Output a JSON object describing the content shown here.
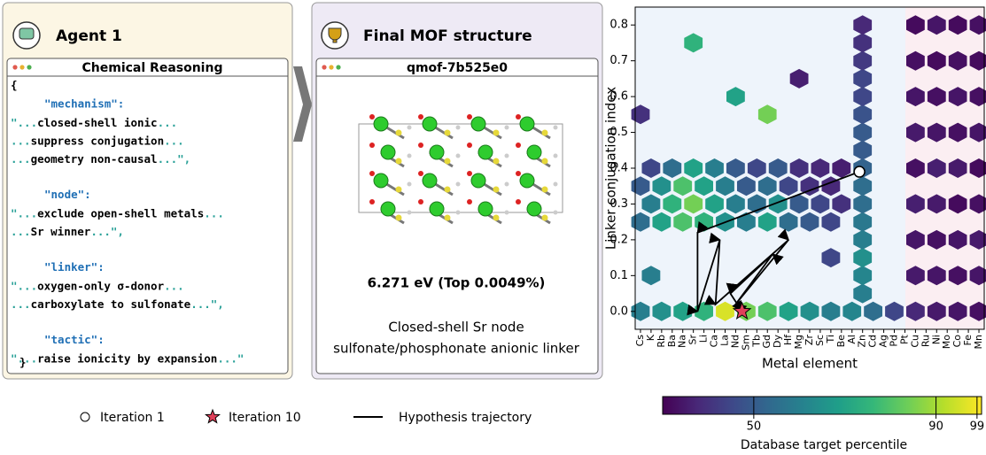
{
  "agent": {
    "title": "Agent 1",
    "window_title": "Chemical Reasoning",
    "open": "{",
    "close": "}",
    "sections": [
      {
        "key": "\"mechanism\":",
        "lines": [
          "\"...closed-shell ionic...",
          "...suppress conjugation...",
          "...geometry non-causal...\","
        ]
      },
      {
        "key": "\"node\":",
        "lines": [
          "\"...exclude open-shell metals...",
          "...Sr winner...\","
        ]
      },
      {
        "key": "\"linker\":",
        "lines": [
          "\"...oxygen-only σ-donor...",
          "...carboxylate to sulfonate...\","
        ]
      },
      {
        "key": "\"tactic\":",
        "lines": [
          "\"...raise ionicity by expansion...\""
        ]
      }
    ]
  },
  "structure": {
    "title": "Final MOF structure",
    "window_title": "qmof-7b525e0",
    "result": "6.271 eV (Top 0.0049%)",
    "description": [
      "Closed-shell Sr node",
      "sulfonate/phosphonate anionic linker"
    ]
  },
  "chart_data": {
    "type": "hexbin",
    "xlabel": "Metal element",
    "ylabel": "Linker conjugation index",
    "categories": [
      "Cs",
      "K",
      "Rb",
      "Ba",
      "Na",
      "Sr",
      "Li",
      "Ca",
      "La",
      "Nd",
      "Sm",
      "Tb",
      "Gd",
      "Dy",
      "Hf",
      "Mg",
      "Zr",
      "Sc",
      "Ti",
      "Be",
      "Al",
      "Zn",
      "Cd",
      "Ag",
      "Pd",
      "Pt",
      "Cu",
      "Ru",
      "Ni",
      "Mo",
      "Co",
      "Fe",
      "Mn"
    ],
    "ylim": [
      -0.05,
      0.85
    ],
    "yticks": [
      0.0,
      0.1,
      0.2,
      0.3,
      0.4,
      0.5,
      0.6,
      0.7,
      0.8
    ],
    "colorbar": {
      "label": "Database target percentile",
      "clim": [
        30,
        100
      ],
      "ticks": [
        50,
        90,
        99
      ]
    },
    "hexbins": {
      "x": [
        0,
        2,
        4,
        6,
        8,
        10,
        12,
        14,
        16,
        18,
        20,
        22,
        24,
        26,
        28,
        30,
        32,
        0,
        2,
        4,
        6,
        8,
        10,
        12,
        14,
        16,
        18,
        1,
        3,
        5,
        7,
        9,
        11,
        13,
        15,
        17,
        19,
        0,
        2,
        4,
        6,
        8,
        10,
        12,
        14,
        16,
        18,
        1,
        3,
        5,
        7,
        9,
        11,
        13,
        15,
        17,
        19,
        21,
        21,
        21,
        21,
        21,
        21,
        21,
        21,
        21,
        21,
        21,
        21,
        21,
        21,
        21,
        21,
        26,
        26,
        26,
        26,
        26,
        26,
        26,
        26,
        28,
        28,
        28,
        28,
        28,
        28,
        28,
        28,
        30,
        30,
        30,
        30,
        30,
        30,
        30,
        30,
        32,
        32,
        32,
        32,
        32,
        32,
        32,
        32,
        0,
        5,
        9,
        12,
        15,
        1,
        18
      ],
      "y": [
        0,
        0,
        0,
        0,
        0,
        0,
        0,
        0,
        0,
        0,
        0,
        0,
        0,
        0,
        0,
        0,
        0,
        0.25,
        0.25,
        0.25,
        0.25,
        0.25,
        0.25,
        0.25,
        0.25,
        0.25,
        0.25,
        0.3,
        0.3,
        0.3,
        0.3,
        0.3,
        0.3,
        0.3,
        0.3,
        0.3,
        0.3,
        0.35,
        0.35,
        0.35,
        0.35,
        0.35,
        0.35,
        0.35,
        0.35,
        0.35,
        0.35,
        0.4,
        0.4,
        0.4,
        0.4,
        0.4,
        0.4,
        0.4,
        0.4,
        0.4,
        0.4,
        0.05,
        0.1,
        0.15,
        0.2,
        0.25,
        0.3,
        0.35,
        0.4,
        0.45,
        0.5,
        0.55,
        0.6,
        0.65,
        0.7,
        0.75,
        0.8,
        0.1,
        0.2,
        0.3,
        0.4,
        0.5,
        0.6,
        0.7,
        0.8,
        0.1,
        0.2,
        0.3,
        0.4,
        0.5,
        0.6,
        0.7,
        0.8,
        0.1,
        0.2,
        0.3,
        0.4,
        0.5,
        0.6,
        0.7,
        0.8,
        0.1,
        0.2,
        0.3,
        0.4,
        0.5,
        0.6,
        0.7,
        0.8,
        0.55,
        0.75,
        0.6,
        0.55,
        0.65,
        0.1,
        0.15
      ],
      "values": [
        60,
        65,
        70,
        75,
        96,
        85,
        80,
        70,
        65,
        60,
        62,
        55,
        45,
        38,
        35,
        34,
        33,
        55,
        70,
        80,
        75,
        65,
        60,
        70,
        55,
        50,
        45,
        60,
        75,
        85,
        70,
        60,
        55,
        65,
        50,
        45,
        40,
        50,
        65,
        80,
        70,
        60,
        50,
        55,
        45,
        40,
        38,
        45,
        55,
        70,
        60,
        50,
        45,
        50,
        40,
        38,
        36,
        60,
        62,
        65,
        60,
        58,
        55,
        55,
        52,
        50,
        50,
        48,
        45,
        45,
        42,
        40,
        38,
        35,
        34,
        36,
        33,
        35,
        34,
        33,
        32,
        34,
        33,
        35,
        36,
        34,
        33,
        32,
        34,
        33,
        34,
        32,
        35,
        33,
        34,
        33,
        32,
        34,
        35,
        33,
        32,
        34,
        33,
        32,
        33,
        40,
        75,
        70,
        85,
        36,
        60,
        45
      ]
    },
    "trajectory": {
      "name": "Hypothesis trajectory",
      "x": [
        20.7,
        5.4,
        5.4,
        7.5,
        7.1,
        14,
        9,
        12.5,
        8.5,
        9.6
      ],
      "y": [
        0.39,
        0.22,
        0,
        0.2,
        0.02,
        0.2,
        0.02,
        0.16,
        0.05,
        0
      ]
    },
    "start_label": "Iteration 1",
    "end_label": "Iteration 10"
  }
}
